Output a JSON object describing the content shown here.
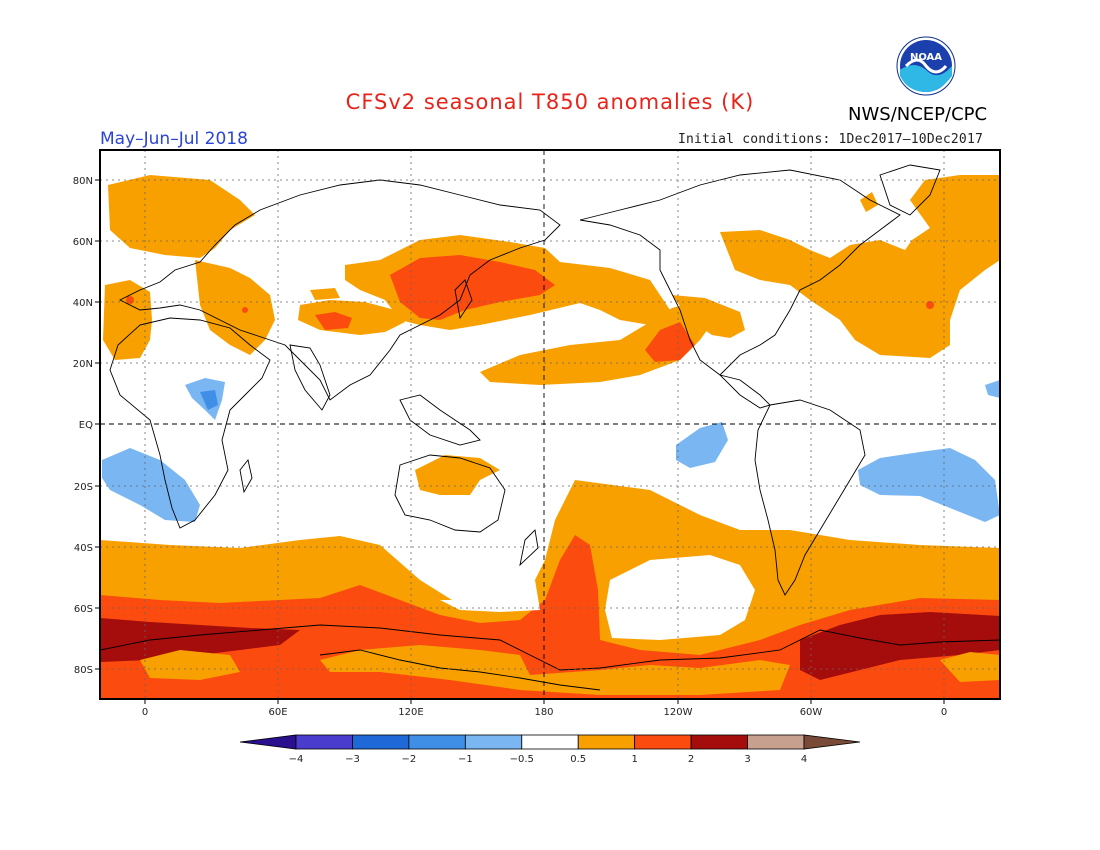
{
  "title": "CFSv2 seasonal T850 anomalies (K)",
  "agency": "NWS/NCEP/CPC",
  "logo_text": "NOAA",
  "period": "May–Jun–Jul 2018",
  "initial_conditions": "Initial conditions: 1Dec2017–10Dec2017",
  "lat_labels": [
    "80N",
    "60N",
    "40N",
    "20N",
    "EQ",
    "20S",
    "40S",
    "60S",
    "80S"
  ],
  "lon_labels": [
    "0",
    "60E",
    "120E",
    "180",
    "120W",
    "60W",
    "0"
  ],
  "colorbar": {
    "labels": [
      "−4",
      "−3",
      "−2",
      "−1",
      "−0.5",
      "0.5",
      "1",
      "2",
      "3",
      "4"
    ],
    "colors": [
      "#2a0f8f",
      "#4a3ccc",
      "#1f68d8",
      "#3f8fe6",
      "#79b6f2",
      "#ffffff",
      "#f8a000",
      "#fb4b0e",
      "#a50c0c",
      "#c8a090",
      "#7a4a38"
    ]
  },
  "colors": {
    "anom_0_5_1": "#f8a000",
    "anom_1_2": "#fb4b0e",
    "anom_2_3": "#a50c0c",
    "anom_neg_0_5_1": "#79b6f2",
    "anom_neg_1_2": "#3f8fe6"
  }
}
